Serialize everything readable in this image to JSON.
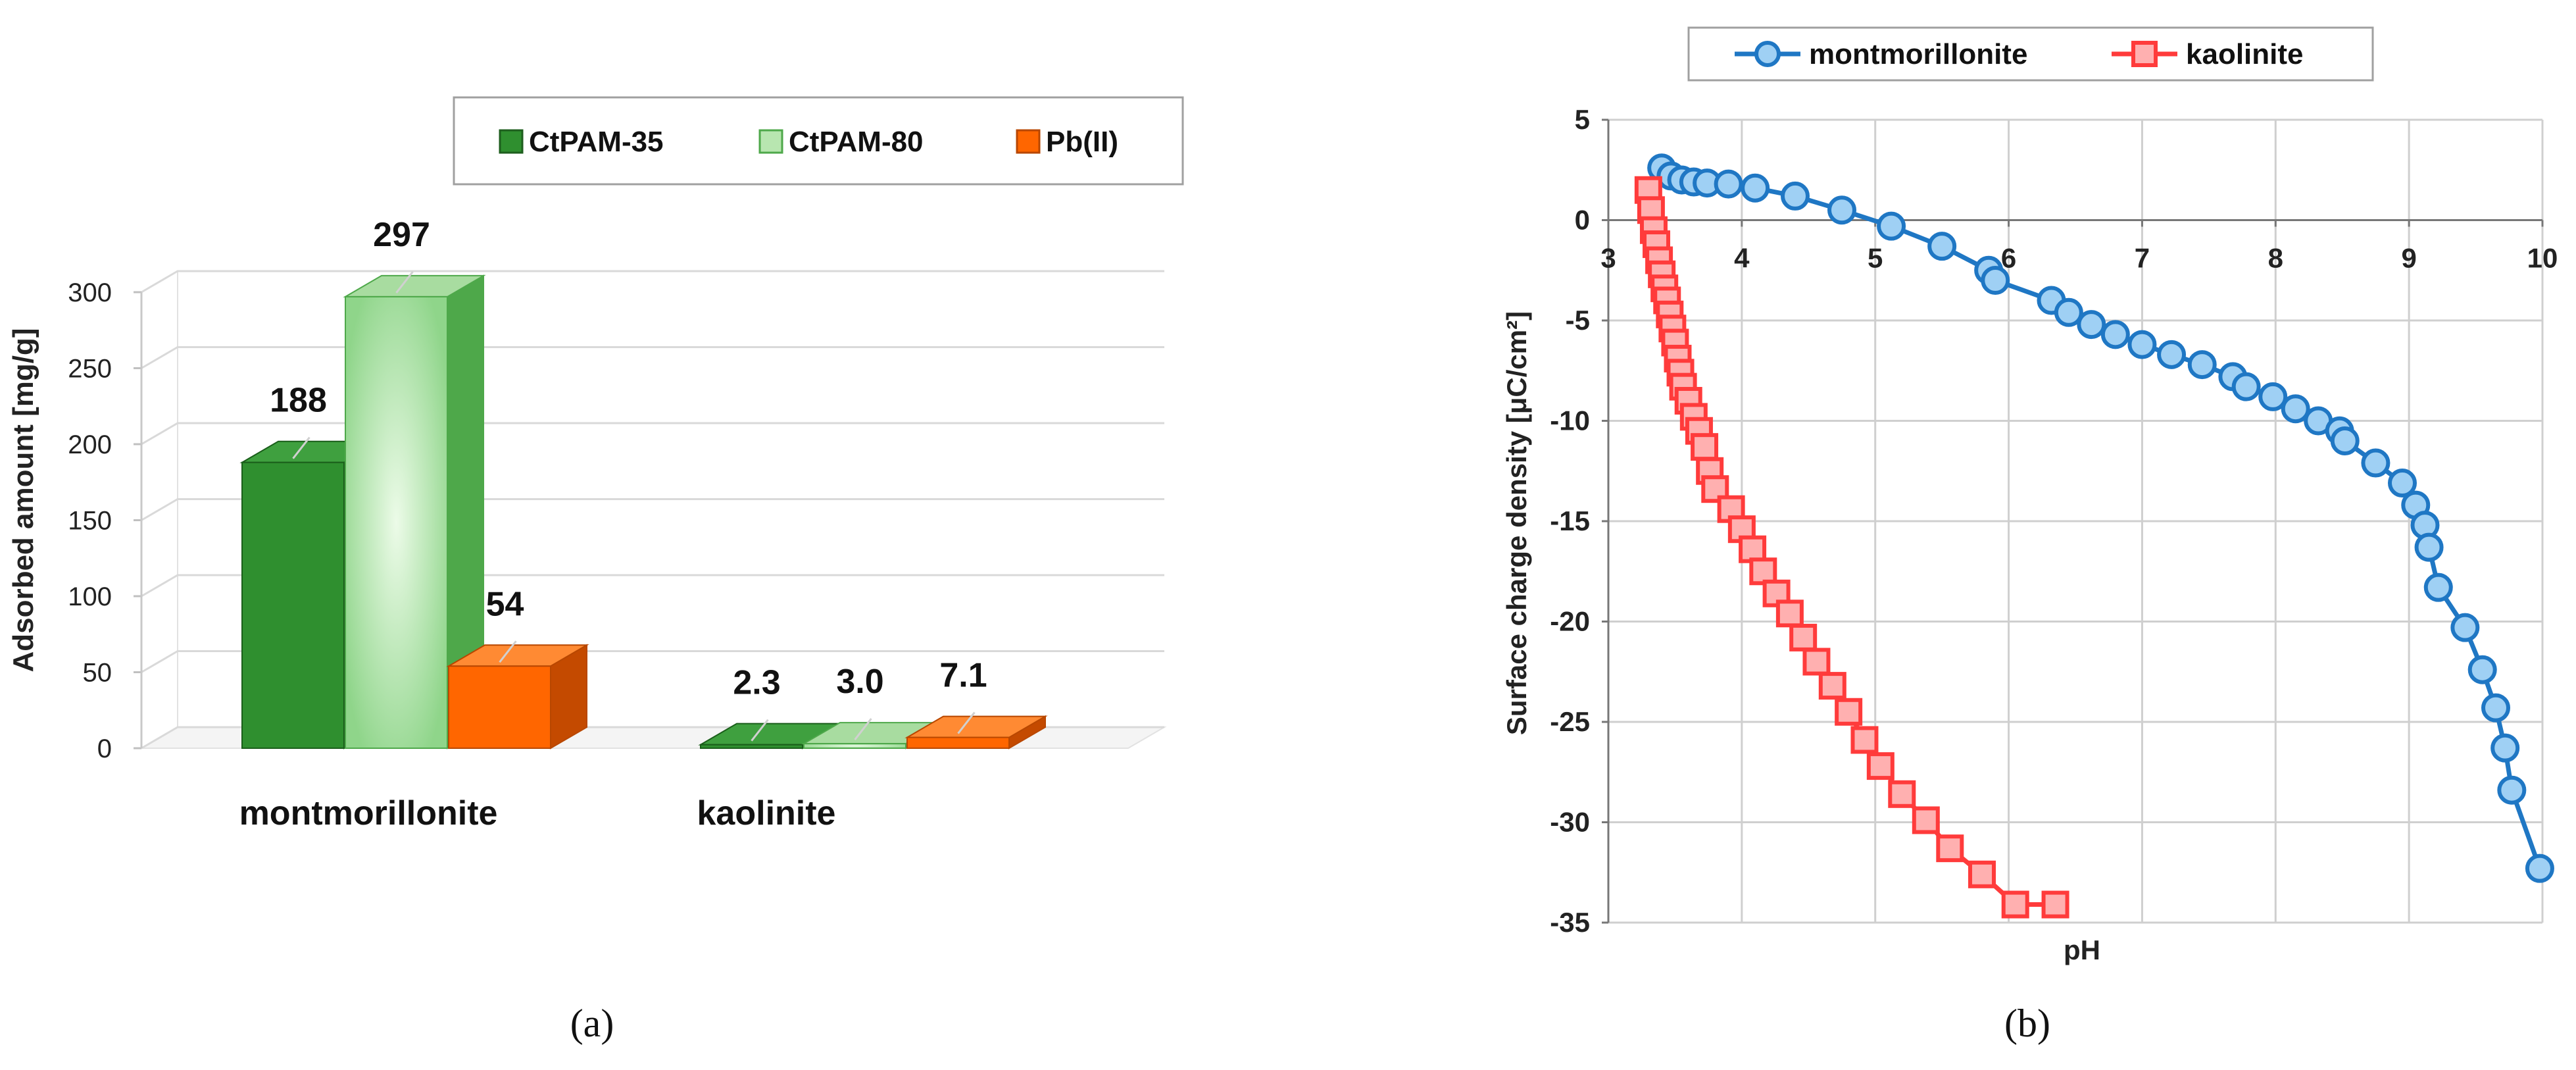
{
  "figure": {
    "label_a": "(a)",
    "label_b": "(b)"
  },
  "colors": {
    "ctpam35": "#2f8f2f",
    "ctpam80": "#b8e6b0",
    "pb": "#ff6600",
    "montmorillonite": "#1f77c4",
    "kaolinite": "#ff3b3b",
    "grid": "#d0d0d0"
  },
  "chart_data": [
    {
      "type": "bar",
      "title": "",
      "xlabel": "",
      "ylabel": "Adsorbed amount [mg/g]",
      "ylim": [
        0,
        300
      ],
      "yticks": [
        0,
        50,
        100,
        150,
        200,
        250,
        300
      ],
      "categories": [
        "montmorillonite",
        "kaolinite"
      ],
      "legend_position": "top-right",
      "series": [
        {
          "name": "CtPAM-35",
          "values": [
            188,
            2.3
          ],
          "labels": [
            "188",
            "2.3"
          ]
        },
        {
          "name": "CtPAM-80",
          "values": [
            297,
            3.0
          ],
          "labels": [
            "297",
            "3.0"
          ]
        },
        {
          "name": "Pb(II)",
          "values": [
            54,
            7.1
          ],
          "labels": [
            "54",
            "7.1"
          ]
        }
      ]
    },
    {
      "type": "line",
      "title": "",
      "xlabel": "pH",
      "ylabel": "Surface charge density [μC/cm²]",
      "xlim": [
        3,
        10
      ],
      "ylim": [
        -35,
        5
      ],
      "xticks": [
        3,
        4,
        5,
        6,
        7,
        8,
        9,
        10
      ],
      "yticks": [
        5,
        0,
        -5,
        -10,
        -15,
        -20,
        -25,
        -30,
        -35
      ],
      "legend_position": "top",
      "series": [
        {
          "name": "montmorillonite",
          "marker": "circle",
          "x": [
            3.4,
            3.47,
            3.55,
            3.64,
            3.74,
            3.9,
            4.1,
            4.4,
            4.75,
            5.12,
            5.5,
            5.85,
            5.9,
            6.32,
            6.45,
            6.62,
            6.8,
            7.0,
            7.22,
            7.45,
            7.68,
            7.78,
            7.98,
            8.15,
            8.32,
            8.48,
            8.52,
            8.75,
            8.95,
            9.05,
            9.12,
            9.15,
            9.22,
            9.42,
            9.55,
            9.65,
            9.72,
            9.77,
            9.98
          ],
          "y": [
            2.6,
            2.2,
            2.0,
            1.9,
            1.85,
            1.8,
            1.6,
            1.2,
            0.5,
            -0.3,
            -1.3,
            -2.5,
            -3.0,
            -4.0,
            -4.6,
            -5.2,
            -5.7,
            -6.2,
            -6.7,
            -7.2,
            -7.8,
            -8.3,
            -8.8,
            -9.4,
            -10.0,
            -10.5,
            -11.0,
            -12.1,
            -13.1,
            -14.2,
            -15.2,
            -16.3,
            -18.3,
            -20.3,
            -22.4,
            -24.3,
            -26.3,
            -28.4,
            -32.3
          ]
        },
        {
          "name": "kaolinite",
          "marker": "square",
          "x": [
            3.3,
            3.32,
            3.34,
            3.36,
            3.38,
            3.4,
            3.42,
            3.44,
            3.46,
            3.48,
            3.5,
            3.52,
            3.54,
            3.56,
            3.6,
            3.64,
            3.68,
            3.72,
            3.76,
            3.8,
            3.92,
            4.0,
            4.08,
            4.16,
            4.26,
            4.36,
            4.46,
            4.56,
            4.68,
            4.8,
            4.92,
            5.04,
            5.2,
            5.38,
            5.56,
            5.8,
            6.05,
            6.35
          ],
          "y": [
            1.5,
            0.5,
            -0.5,
            -1.2,
            -2.0,
            -2.7,
            -3.4,
            -4.0,
            -4.7,
            -5.4,
            -6.1,
            -6.9,
            -7.6,
            -8.3,
            -9.0,
            -9.8,
            -10.5,
            -11.3,
            -12.5,
            -13.4,
            -14.4,
            -15.4,
            -16.4,
            -17.5,
            -18.6,
            -19.6,
            -20.8,
            -22.0,
            -23.2,
            -24.5,
            -25.9,
            -27.2,
            -28.6,
            -29.9,
            -31.3,
            -32.6,
            -34.1,
            -34.1
          ]
        }
      ]
    }
  ]
}
